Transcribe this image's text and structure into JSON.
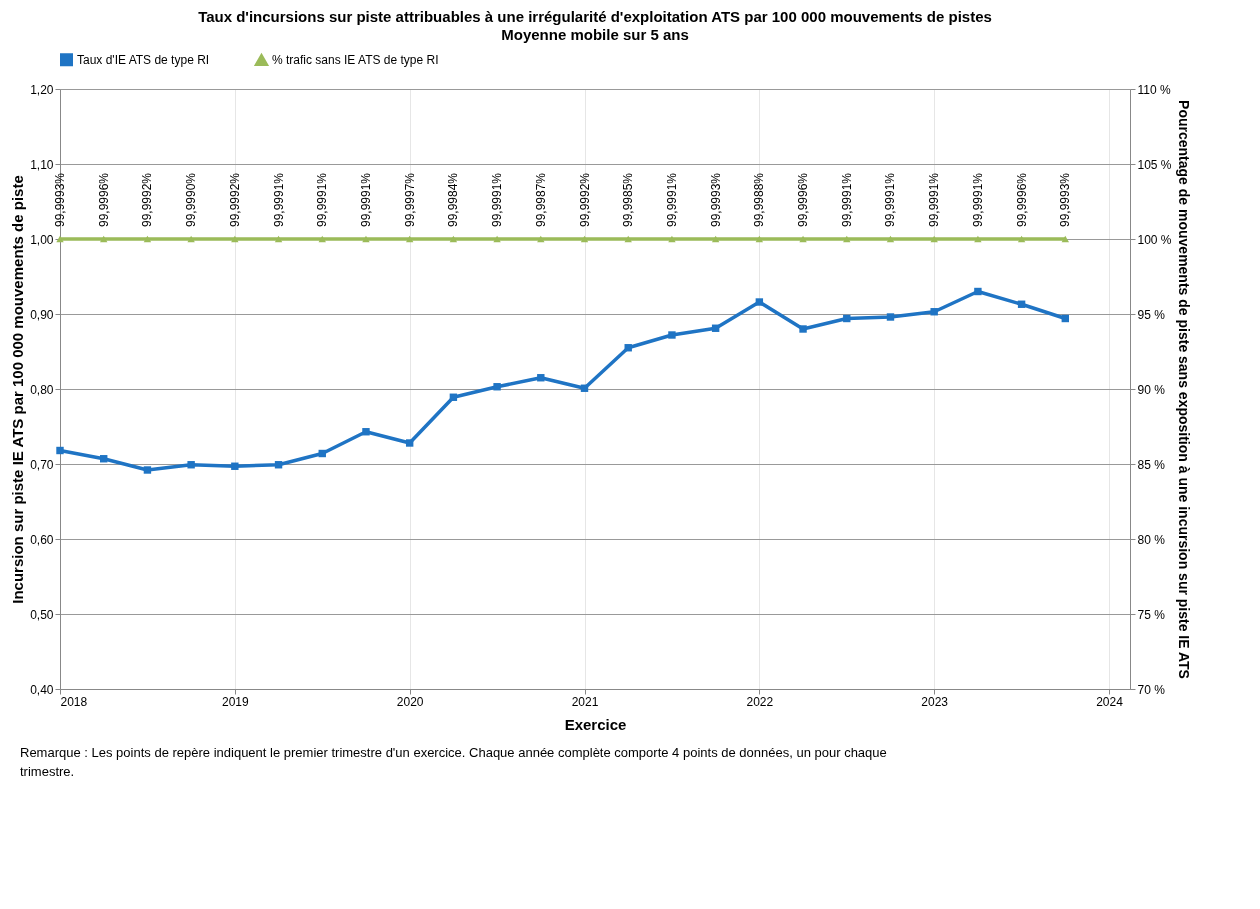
{
  "chart_data": {
    "type": "line",
    "title": "Taux d'incursions sur piste attribuables à une irrégularité d'exploitation ATS par 100 000 mouvements de pistes",
    "subtitle": "Moyenne mobile sur 5 ans",
    "xlabel": "Exercice",
    "ylabel": "Incursion sur piste IE ATS par 100 000 mouvements de piste",
    "y2label": "Pourcentage de mouvements de piste sans exposition à une incursion sur piste IE ATS",
    "annotations": [
      "Remarque : Les points de repère indiquent le premier trimestre d'un exercice. Chaque année complète comporte 4 points de données, un pour chaque trimestre."
    ],
    "x": [
      2018,
      2018.25,
      2018.5,
      2018.75,
      2019,
      2019.25,
      2019.5,
      2019.75,
      2020,
      2020.25,
      2020.5,
      2020.75,
      2021,
      2021.25,
      2021.5,
      2021.75,
      2022,
      2022.25,
      2022.5,
      2022.75,
      2023,
      2023.25,
      2023.5,
      2023.75
    ],
    "series": [
      {
        "name": "Taux d'IE ATS de type RI",
        "color": "#1f74c4",
        "marker": "square",
        "values": [
          0.718,
          0.707,
          0.692,
          0.699,
          0.697,
          0.699,
          0.714,
          0.743,
          0.728,
          0.789,
          0.803,
          0.815,
          0.801,
          0.855,
          0.872,
          0.881,
          0.916,
          0.88,
          0.894,
          0.896,
          0.903,
          0.93,
          0.913,
          0.894
        ]
      },
      {
        "name": "% trafic sans IE ATS de type RI",
        "color": "#9bbb59",
        "marker": "triangle",
        "axis": "y2",
        "values": [
          99.9993,
          99.9996,
          99.9992,
          99.999,
          99.9992,
          99.9991,
          99.9991,
          99.9991,
          99.9997,
          99.9984,
          99.9991,
          99.9987,
          99.9992,
          99.9985,
          99.9991,
          99.9993,
          99.9988,
          99.9996,
          99.9991,
          99.9991,
          99.9991,
          99.9991,
          99.9996,
          99.9993
        ],
        "value_labels": [
          "99,9993%",
          "99,9996%",
          "99,9992%",
          "99,9990%",
          "99,9992%",
          "99,9991%",
          "99,9991%",
          "99,9991%",
          "99,9997%",
          "99,9984%",
          "99,9991%",
          "99,9987%",
          "99,9992%",
          "99,9985%",
          "99,9991%",
          "99,9993%",
          "99,9988%",
          "99,9996%",
          "99,9991%",
          "99,9991%",
          "99,9991%",
          "99,9991%",
          "99,9996%",
          "99,9993%"
        ]
      }
    ],
    "xlim": [
      2018,
      2024.12
    ],
    "xticks": [
      2018,
      2019,
      2020,
      2021,
      2022,
      2023,
      2024
    ],
    "ylim": [
      0.4,
      1.2
    ],
    "yticks": [
      {
        "value": 0.4,
        "label": "0,40"
      },
      {
        "value": 0.5,
        "label": "0,50"
      },
      {
        "value": 0.6,
        "label": "0,60"
      },
      {
        "value": 0.7,
        "label": "0,70"
      },
      {
        "value": 0.8,
        "label": "0,80"
      },
      {
        "value": 0.9,
        "label": "0,90"
      },
      {
        "value": 1.0,
        "label": "1,00"
      },
      {
        "value": 1.1,
        "label": "1,10"
      },
      {
        "value": 1.2,
        "label": "1,20"
      }
    ],
    "y2lim": [
      70,
      110
    ],
    "y2ticks": [
      {
        "value": 70,
        "label": "70 %"
      },
      {
        "value": 75,
        "label": "75 %"
      },
      {
        "value": 80,
        "label": "80 %"
      },
      {
        "value": 85,
        "label": "85 %"
      },
      {
        "value": 90,
        "label": "90 %"
      },
      {
        "value": 95,
        "label": "95 %"
      },
      {
        "value": 100,
        "label": "100 %"
      },
      {
        "value": 105,
        "label": "105 %"
      },
      {
        "value": 110,
        "label": "110 %"
      }
    ],
    "grid": true,
    "legend": "top",
    "line_style": "solid"
  }
}
